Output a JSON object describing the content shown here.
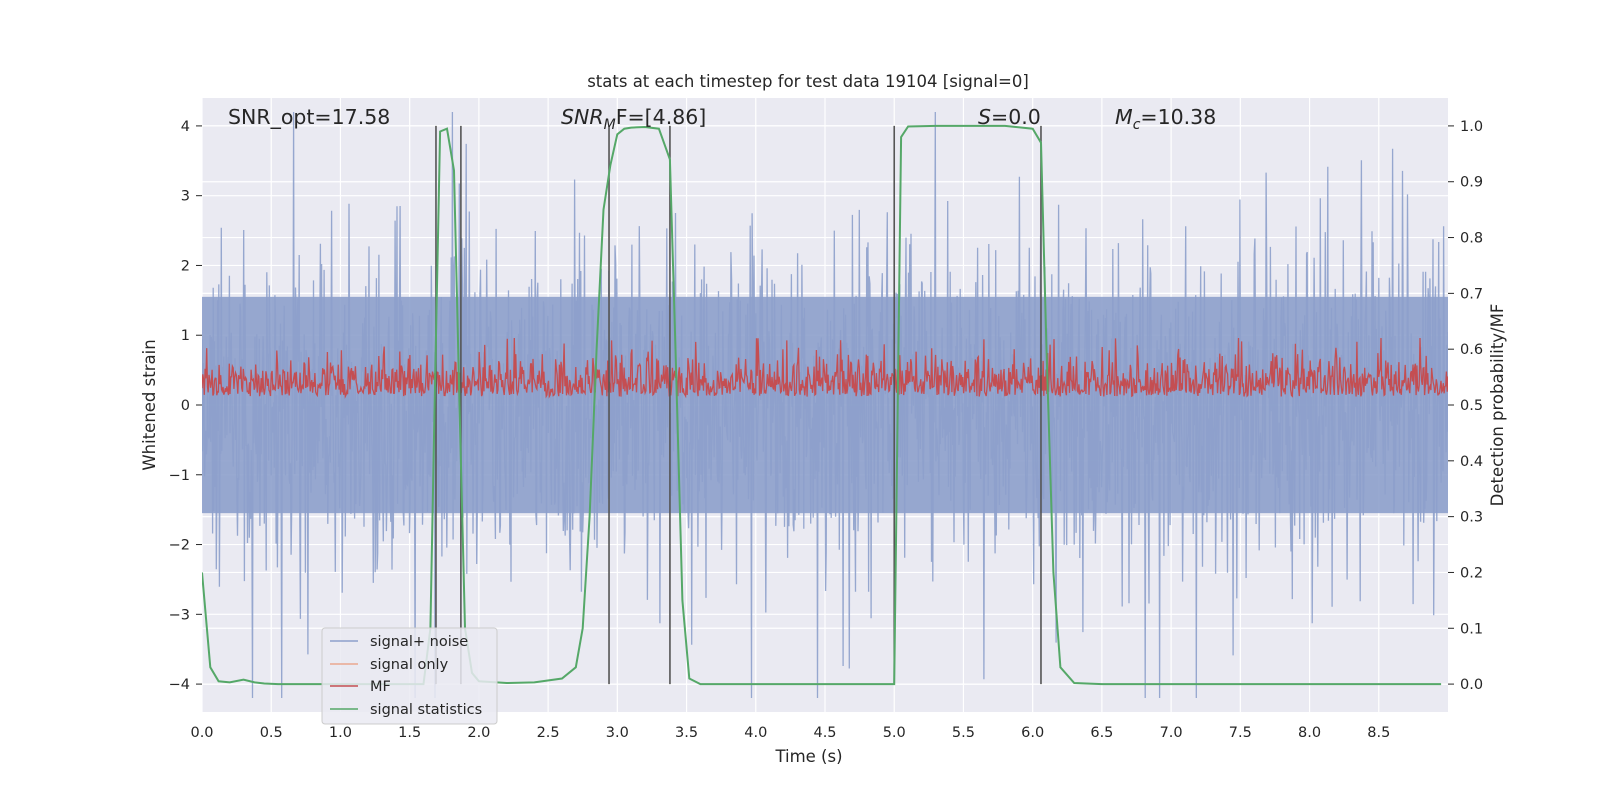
{
  "chart_data": {
    "type": "line",
    "title": "stats at each timestep for test data 19104 [signal=0]",
    "xlabel": "Time (s)",
    "ylabel": "Whitened strain",
    "y2label": "Detection probability/MF",
    "xlim": [
      0.0,
      9.0
    ],
    "ylim": [
      -4.4,
      4.4
    ],
    "y2lim": [
      -0.05,
      1.05
    ],
    "xticks": [
      "0.0",
      "0.5",
      "1.0",
      "1.5",
      "2.0",
      "2.5",
      "3.0",
      "3.5",
      "4.0",
      "4.5",
      "5.0",
      "5.5",
      "6.0",
      "6.5",
      "7.0",
      "7.5",
      "8.0",
      "8.5"
    ],
    "yticks": [
      "4",
      "3",
      "2",
      "1",
      "0",
      "−1",
      "−2",
      "−3",
      "−4"
    ],
    "y2ticks": [
      "1.0",
      "0.9",
      "0.8",
      "0.7",
      "0.6",
      "0.5",
      "0.4",
      "0.3",
      "0.2",
      "0.1",
      "0.0"
    ],
    "grid": true,
    "legend_position": "lower-left",
    "annotations": {
      "snr_opt": "SNR_opt=17.58",
      "snr_mf_prefix": "SNR",
      "snr_mf_sub": "M",
      "snr_mf_suffix": "F=[4.86]",
      "s_prefix": "S",
      "s_suffix": "=0.0",
      "mc_prefix": "M",
      "mc_sub": "c",
      "mc_suffix": "=10.38"
    },
    "series": [
      {
        "name": "signal+ noise",
        "color": "#8da0cb",
        "description": "whitened strain, amplitude roughly ±3.5 with spikes to ~4"
      },
      {
        "name": "signal only",
        "color": "#e9a88f",
        "values": []
      },
      {
        "name": "MF",
        "color": "#c44e52",
        "axis": "right",
        "description": "matched filter output, approx 0.5–0.6 on right axis"
      },
      {
        "name": "signal statistics",
        "color": "#55a868",
        "axis": "right",
        "x": [
          0.0,
          0.06,
          0.12,
          0.2,
          0.3,
          0.38,
          0.45,
          0.55,
          0.7,
          0.9,
          1.1,
          1.3,
          1.5,
          1.6,
          1.65,
          1.68,
          1.72,
          1.77,
          1.82,
          1.86,
          1.9,
          1.95,
          2.0,
          2.2,
          2.4,
          2.6,
          2.7,
          2.75,
          2.8,
          2.85,
          2.9,
          2.95,
          3.0,
          3.05,
          3.1,
          3.2,
          3.3,
          3.38,
          3.42,
          3.47,
          3.52,
          3.6,
          3.8,
          4.0,
          4.2,
          4.5,
          4.8,
          4.95,
          5.0,
          5.05,
          5.1,
          5.3,
          5.5,
          5.8,
          6.0,
          6.06,
          6.1,
          6.15,
          6.2,
          6.3,
          6.5,
          7.0,
          7.5,
          8.0,
          8.5,
          8.95
        ],
        "values": [
          0.2,
          0.03,
          0.005,
          0.003,
          0.008,
          0.003,
          0.001,
          0.0,
          0.0,
          0.0,
          0.0,
          0.0,
          0.0,
          0.0,
          0.1,
          0.5,
          0.99,
          0.995,
          0.92,
          0.5,
          0.1,
          0.02,
          0.005,
          0.002,
          0.003,
          0.01,
          0.03,
          0.1,
          0.3,
          0.6,
          0.85,
          0.93,
          0.985,
          0.995,
          0.997,
          0.998,
          0.995,
          0.94,
          0.6,
          0.15,
          0.01,
          0.0,
          0.0,
          0.0,
          0.0,
          0.0,
          0.0,
          0.0,
          0.0,
          0.98,
          0.999,
          1.0,
          1.0,
          1.0,
          0.995,
          0.97,
          0.6,
          0.2,
          0.03,
          0.002,
          0.0,
          0.0,
          0.0,
          0.0,
          0.0,
          0.0
        ]
      }
    ],
    "vertical_lines_x": [
      1.69,
      1.87,
      2.94,
      3.38,
      5.0,
      6.06
    ]
  }
}
